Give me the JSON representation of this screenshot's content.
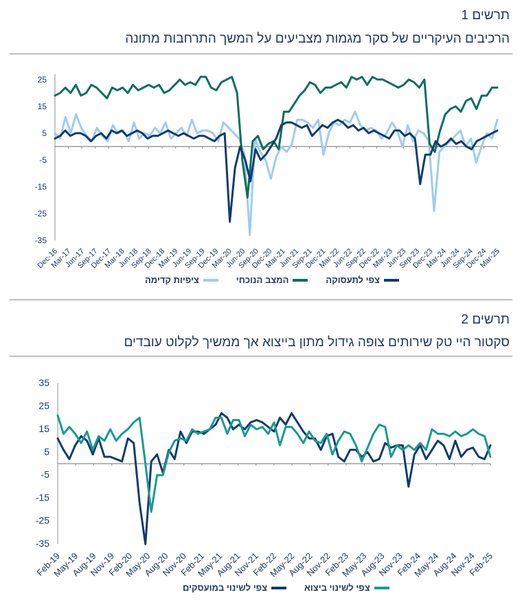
{
  "figure1": {
    "label": "תרשים 1",
    "title": "הרכיבים העיקריים של סקר מגמות מצביעים על המשך התרחבות מתונה",
    "chart_data": {
      "type": "line",
      "yticks": [
        "25",
        "15",
        "5",
        "-5",
        "-15",
        "-25",
        "-35"
      ],
      "ylim": [
        -35,
        27
      ],
      "grid": false,
      "legend_position": "bottom",
      "x_tick_labels": [
        "Dec-16",
        "Mar-17",
        "Jun-17",
        "Sep-17",
        "Dec-17",
        "Mar-18",
        "Jun-18",
        "Sep-18",
        "Dec-18",
        "Mar-19",
        "Jun-19",
        "Sep-19",
        "Dec-19",
        "Mar-20",
        "Jun-20",
        "Sep-20",
        "Dec-20",
        "Mar-21",
        "Jun-21",
        "Sep-21",
        "Dec-21",
        "Mar-22",
        "Jun-22",
        "Sep-22",
        "Dec-22",
        "Mar-23",
        "Jun-23",
        "Sep-23",
        "Dec-23",
        "Mar-24",
        "Jun-24",
        "Sep-24",
        "Dec-24",
        "Mar-25"
      ],
      "series": [
        {
          "name": "ציפיות קדימה",
          "color": "#a0cbf0",
          "values": [
            5,
            3,
            11,
            5,
            12,
            7,
            4,
            2,
            7,
            4,
            2,
            8,
            5,
            6,
            2,
            9,
            3,
            5,
            4,
            7,
            5,
            9,
            3,
            5,
            7,
            4,
            10,
            5,
            6,
            6,
            5,
            2,
            9,
            7,
            5,
            3,
            -3,
            -33,
            3,
            -2,
            -5,
            -12,
            -4,
            0,
            -2,
            1,
            10,
            10,
            9,
            7,
            10,
            -3,
            5,
            9,
            8,
            10,
            9,
            13,
            8,
            6,
            7,
            6,
            3,
            5,
            9,
            6,
            0,
            8,
            2,
            6,
            5,
            2,
            -24,
            -2,
            0,
            2,
            4,
            6,
            0,
            3,
            -6,
            0,
            5,
            3,
            10
          ]
        },
        {
          "name": "המצב הנוכחי",
          "color": "#0e6e5e",
          "values": [
            19,
            20,
            22,
            20,
            23,
            19,
            20,
            23,
            22,
            20,
            18,
            22,
            21,
            22,
            20,
            23,
            21,
            22,
            23,
            22,
            23,
            20,
            21,
            23,
            25,
            23,
            24,
            23,
            26,
            26,
            22,
            21,
            24,
            25,
            26,
            20,
            -5,
            -19,
            2,
            4,
            -1,
            1,
            2,
            -1,
            13,
            13,
            16,
            19,
            21,
            24,
            23,
            20,
            22,
            22,
            23,
            24,
            22,
            26,
            25,
            26,
            23,
            26,
            25,
            25,
            24,
            23,
            22,
            23,
            25,
            24,
            22,
            25,
            1,
            -2,
            6,
            12,
            14,
            15,
            13,
            17,
            18,
            14,
            19,
            19,
            22,
            22
          ]
        },
        {
          "name": "צפי לתעסוקה",
          "color": "#0f3c6e",
          "values": [
            3,
            4,
            6,
            4,
            5,
            5,
            4,
            2,
            4,
            5,
            3,
            6,
            5,
            6,
            4,
            5,
            6,
            5,
            3,
            4,
            4,
            5,
            6,
            5,
            4,
            5,
            4,
            3,
            4,
            4,
            3,
            2,
            4,
            5,
            -28,
            -8,
            0,
            -5,
            -13,
            -1,
            -5,
            -3,
            0,
            3,
            8,
            9,
            9,
            8,
            7,
            8,
            4,
            6,
            8,
            7,
            9,
            10,
            9,
            7,
            8,
            6,
            7,
            5,
            6,
            5,
            4,
            3,
            6,
            6,
            4,
            5,
            3,
            -14,
            -3,
            -3,
            2,
            0,
            1,
            3,
            1,
            2,
            0,
            -1,
            2,
            3,
            4,
            5,
            6
          ]
        }
      ]
    },
    "legend": [
      {
        "label": "צפי לתעסוקה",
        "color": "#0f3c6e"
      },
      {
        "label": "המצב הנוכחי",
        "color": "#0e6e5e"
      },
      {
        "label": "ציפיות קדימה",
        "color": "#a0cbf0"
      }
    ]
  },
  "figure2": {
    "label": "תרשים 2",
    "title": "סקטור היי טק שירותים צופה גידול מתון בייצוא אך ממשיך לקלוט עובדים",
    "chart_data": {
      "type": "line",
      "yticks": [
        "35",
        "25",
        "15",
        "5",
        "-5",
        "-15",
        "-25",
        "-35"
      ],
      "ylim": [
        -35,
        35
      ],
      "grid": false,
      "legend_position": "bottom",
      "x_tick_labels": [
        "Feb-19",
        "May-19",
        "Aug-19",
        "Nov-19",
        "Feb-20",
        "May-20",
        "Aug-20",
        "Nov-20",
        "Feb-21",
        "May-21",
        "Aug-21",
        "Nov-21",
        "Feb-22",
        "May-22",
        "Aug-22",
        "Nov-22",
        "Feb-23",
        "May-23",
        "Aug-23",
        "Nov-23",
        "Feb-24",
        "May-24",
        "Aug-24",
        "Nov-24",
        "Feb-25"
      ],
      "series": [
        {
          "name": "צפי לשינוי במועסקים",
          "color": "#0f3c6e",
          "values": [
            11,
            6,
            2,
            8,
            12,
            10,
            4,
            11,
            3,
            3,
            2,
            1,
            11,
            9,
            -17,
            -35,
            1,
            4,
            -4,
            6,
            2,
            14,
            9,
            14,
            14,
            13,
            15,
            17,
            22,
            20,
            15,
            17,
            15,
            18,
            19,
            18,
            16,
            14,
            20,
            17,
            22,
            18,
            14,
            11,
            11,
            6,
            12,
            13,
            3,
            1,
            6,
            6,
            3,
            5,
            1,
            2,
            9,
            7,
            8,
            8,
            -10,
            4,
            8,
            2,
            6,
            10,
            8,
            2,
            10,
            3,
            6,
            7,
            3,
            2,
            8
          ]
        },
        {
          "name": "צפי לשינוי ביצוא",
          "color": "#1a9a90",
          "values": [
            21,
            13,
            16,
            13,
            9,
            14,
            6,
            12,
            10,
            15,
            10,
            13,
            15,
            18,
            20,
            0,
            -21,
            -5,
            -5,
            5,
            10,
            11,
            10,
            15,
            13,
            14,
            15,
            20,
            20,
            13,
            19,
            19,
            12,
            17,
            15,
            16,
            13,
            18,
            8,
            16,
            16,
            13,
            9,
            14,
            10,
            9,
            13,
            4,
            10,
            14,
            13,
            8,
            1,
            7,
            13,
            17,
            16,
            3,
            8,
            6,
            8,
            6,
            9,
            6,
            15,
            13,
            13,
            12,
            14,
            12,
            13,
            15,
            13,
            12,
            3
          ]
        }
      ]
    },
    "legend": [
      {
        "label": "צפי לשינוי ביצוא",
        "color": "#1a9a90"
      },
      {
        "label": "צפי לשינוי במועסקים",
        "color": "#0f3c6e"
      }
    ]
  }
}
